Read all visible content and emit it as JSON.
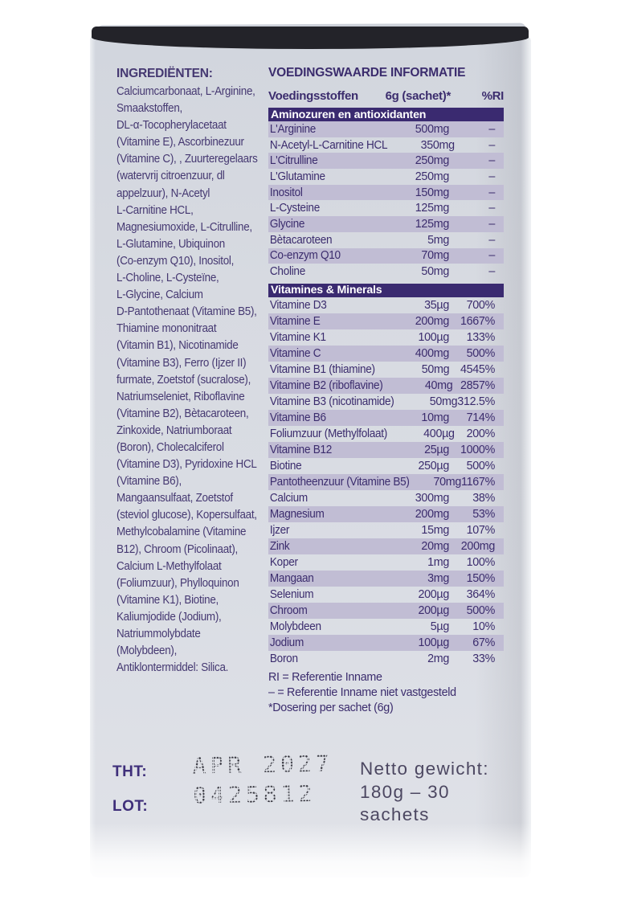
{
  "colors": {
    "bar_purple": "#3a2a70",
    "stripe": "#c1bdd4",
    "text_purple": "#3b2c6d",
    "lid_dark": "#232329",
    "panel_gray": "#d7dae1"
  },
  "panel": {
    "ingredients": {
      "title": "INGREDIËNTEN:",
      "text": "Calciumcarbonaat, L-Arginine,\nSmaakstoffen,\nDL-α-Tocopherylacetaat\n(Vitamine E), Ascorbinezuur\n(Vitamine C), , Zuurteregelaars\n(watervrij citroenzuur, dl\nappelzuur), N-Acetyl\nL-Carnitine HCL,\nMagnesiumoxide, L-Citrulline,\nL-Glutamine,  Ubiquinon\n(Co-enzym Q10), Inositol,\nL-Choline, L-Cysteïne,\nL-Glycine,  Calcium\nD-Pantothenaat (Vitamine B5),\nThiamine mononitraat\n(Vitamin B1), Nicotinamide\n(Vitamine B3),  Ferro (Ijzer II)\nfurmate,  Zoetstof (sucralose),\nNatriumseleniet, Riboflavine\n(Vitamine B2), Bètacaroteen,\nZinkoxide, Natriumboraat\n(Boron), Cholecalciferol\n(Vitamine D3), Pyridoxine HCL\n(Vitamine B6),\nMangaansulfaat, Zoetstof\n(steviol glucose), Kopersulfaat,\nMethylcobalamine (Vitamine\nB12), Chroom (Picolinaat),\nCalcium L-Methylfolaat\n(Foliumzuur), Phylloquinon\n(Vitamine K1), Biotine,\nKaliumjodide (Jodium),\nNatriummolybdate\n(Molybdeen),\nAntiklontermiddel: Silica."
    },
    "nutrition": {
      "title": "VOEDINGSWAARDE INFORMATIE",
      "columns": {
        "name": "Voedingsstoffen",
        "amount": "6g (sachet)*",
        "ri": "%RI"
      },
      "sections": [
        {
          "header": "Aminozuren en antioxidanten",
          "stripe_first_row": true,
          "rows": [
            [
              "L'Arginine",
              "500mg",
              "–"
            ],
            [
              "N-Acetyl-L-Carnitine HCL",
              "350mg",
              "–"
            ],
            [
              "L'Citrulline",
              "250mg",
              "–"
            ],
            [
              "L'Glutamine",
              "250mg",
              "–"
            ],
            [
              "Inositol",
              "150mg",
              "–"
            ],
            [
              "L-Cysteine",
              "125mg",
              "–"
            ],
            [
              "Glycine",
              "125mg",
              "–"
            ],
            [
              "Bètacaroteen",
              "5mg",
              "–"
            ],
            [
              "Co-enzym Q10",
              "70mg",
              "–"
            ],
            [
              "Choline",
              "50mg",
              "–"
            ]
          ]
        },
        {
          "header": "Vitamines & Minerals",
          "stripe_first_row": false,
          "rows": [
            [
              "Vitamine D3",
              "35µg",
              "700%"
            ],
            [
              "Vitamine E",
              "200mg",
              "1667%"
            ],
            [
              "Vitamine K1",
              "100µg",
              "133%"
            ],
            [
              "Vitamine C",
              "400mg",
              "500%"
            ],
            [
              "Vitamine B1 (thiamine)",
              "50mg",
              "4545%"
            ],
            [
              "Vitamine B2 (riboflavine)",
              "40mg",
              "2857%"
            ],
            [
              "Vitamine B3 (nicotinamide)",
              "50mg",
              "312.5%"
            ],
            [
              "Vitamine B6",
              "10mg",
              "714%"
            ],
            [
              "Foliumzuur (Methylfolaat)",
              "400µg",
              "200%"
            ],
            [
              "Vitamine B12",
              "25µg",
              "1000%"
            ],
            [
              "Biotine",
              "250µg",
              "500%"
            ],
            [
              "Pantotheenzuur (Vitamine B5)",
              "70mg",
              "1167%"
            ],
            [
              "Calcium",
              "300mg",
              "38%"
            ],
            [
              "Magnesium",
              "200mg",
              "53%"
            ],
            [
              "Ijzer",
              "15mg",
              "107%"
            ],
            [
              "Zink",
              "20mg",
              "200mg"
            ],
            [
              "Koper",
              "1mg",
              "100%"
            ],
            [
              "Mangaan",
              "3mg",
              "150%"
            ],
            [
              "Selenium",
              "200µg",
              "364%"
            ],
            [
              "Chroom",
              "200µg",
              "500%"
            ],
            [
              "Molybdeen",
              "5µg",
              "10%"
            ],
            [
              "Jodium",
              "100µg",
              "67%"
            ],
            [
              "Boron",
              "2mg",
              "33%"
            ]
          ]
        }
      ],
      "footnotes": [
        "RI = Referentie Inname",
        "– = Referentie Inname niet vastgesteld",
        "*Dosering per sachet (6g)"
      ]
    },
    "print": {
      "tht_label": "THT:",
      "tht_value": "APR 2027",
      "lot_label": "LOT:",
      "lot_value": "0425812",
      "netto": "Netto gewicht:\n180g – 30\nsachets"
    }
  }
}
